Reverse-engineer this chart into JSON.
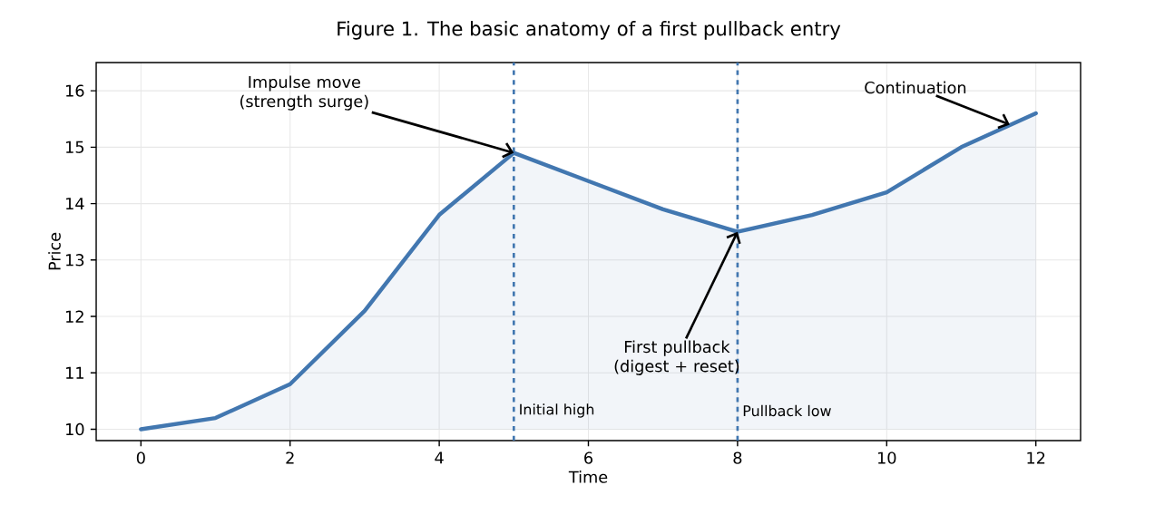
{
  "chart_data": {
    "type": "area",
    "title": "Figure 1. The basic anatomy of a first pullback entry",
    "xlabel": "Time",
    "ylabel": "Price",
    "x": [
      0,
      1,
      2,
      3,
      4,
      5,
      6,
      7,
      8,
      9,
      10,
      11,
      12
    ],
    "values": [
      10.0,
      10.2,
      10.8,
      12.1,
      13.8,
      14.9,
      14.4,
      13.9,
      13.5,
      13.8,
      14.2,
      15.0,
      15.6
    ],
    "color": "#4277b0",
    "xlim": [
      -0.6,
      12.6
    ],
    "ylim": [
      9.8,
      16.5
    ],
    "xticks": [
      0,
      2,
      4,
      6,
      8,
      10,
      12
    ],
    "yticks": [
      10,
      11,
      12,
      13,
      14,
      15,
      16
    ],
    "grid": true,
    "line_style": "solid",
    "ref_lines": [
      {
        "axis": "x",
        "value": 5,
        "label": "Initial high",
        "color": "#4277b0",
        "line_style": "dashed"
      },
      {
        "axis": "x",
        "value": 8,
        "label": "Pullback low",
        "color": "#4277b0",
        "line_style": "dashed"
      }
    ],
    "annotations": [
      {
        "text": "Impulse move (strength surge)",
        "x": 5,
        "y": 14.9
      },
      {
        "text": "First pullback (digest + reset)",
        "x": 8,
        "y": 13.5
      },
      {
        "text": "Continuation",
        "x": 11.65,
        "y": 15.4
      }
    ]
  }
}
